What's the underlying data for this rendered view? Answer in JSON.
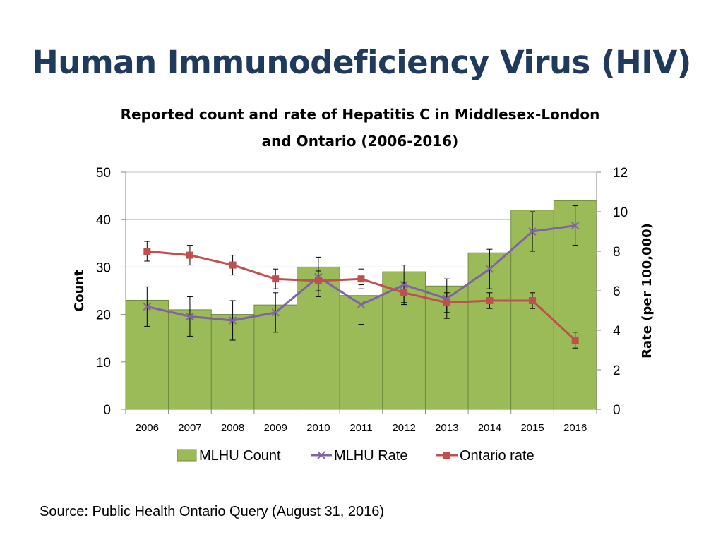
{
  "slide": {
    "title": "Human Immunodeficiency Virus (HIV)",
    "source": "Source: Public Health Ontario Query (August 31, 2016)"
  },
  "colors": {
    "title": "#1f3a5c",
    "bar_fill": "#9bbb59",
    "bar_stroke": "#71893f",
    "mlhu_rate": "#8064a2",
    "ontario_rate": "#c0504d",
    "gridline": "#bfbfbf",
    "axis": "#868686"
  },
  "chart_data": {
    "type": "bar",
    "title": "Reported count and rate of Hepatitis C in Middlesex-London and Ontario (2006-2016)",
    "ylabel": "Count",
    "y2label": "Rate (per 100,000)",
    "ylim": [
      0,
      50
    ],
    "y2lim": [
      0,
      12
    ],
    "yticks": [
      "0",
      "10",
      "20",
      "30",
      "40",
      "50"
    ],
    "y2ticks": [
      "0",
      "2",
      "4",
      "6",
      "8",
      "10",
      "12"
    ],
    "grid": true,
    "legend_position": "bottom",
    "categories": [
      "2006",
      "2007",
      "2008",
      "2009",
      "2010",
      "2011",
      "2012",
      "2013",
      "2014",
      "2015",
      "2016"
    ],
    "series": [
      {
        "name": "MLHU Count",
        "type": "bar",
        "axis": "left",
        "values": [
          23,
          21,
          20,
          22,
          30,
          24,
          29,
          26,
          33,
          42,
          44
        ]
      },
      {
        "name": "MLHU Rate",
        "type": "line",
        "marker": "x",
        "axis": "right",
        "values": [
          5.2,
          4.7,
          4.5,
          4.9,
          6.7,
          5.3,
          6.3,
          5.6,
          7.1,
          9.0,
          9.3
        ],
        "error_low": [
          4.2,
          3.7,
          3.5,
          3.9,
          5.7,
          4.3,
          5.3,
          4.6,
          6.1,
          8.0,
          8.3
        ],
        "error_high": [
          6.2,
          5.7,
          5.5,
          5.9,
          7.7,
          6.3,
          7.3,
          6.6,
          8.1,
          10.0,
          10.3
        ]
      },
      {
        "name": "Ontario rate",
        "type": "line",
        "marker": "square",
        "axis": "right",
        "values": [
          8.0,
          7.8,
          7.3,
          6.6,
          6.5,
          6.6,
          5.9,
          5.4,
          5.5,
          5.5,
          3.5
        ],
        "error_low": [
          7.5,
          7.3,
          6.8,
          6.1,
          6.0,
          6.1,
          5.4,
          4.9,
          5.1,
          5.1,
          3.1
        ],
        "error_high": [
          8.5,
          8.3,
          7.8,
          7.1,
          7.0,
          7.1,
          6.4,
          5.9,
          5.9,
          5.9,
          3.9
        ]
      }
    ]
  }
}
